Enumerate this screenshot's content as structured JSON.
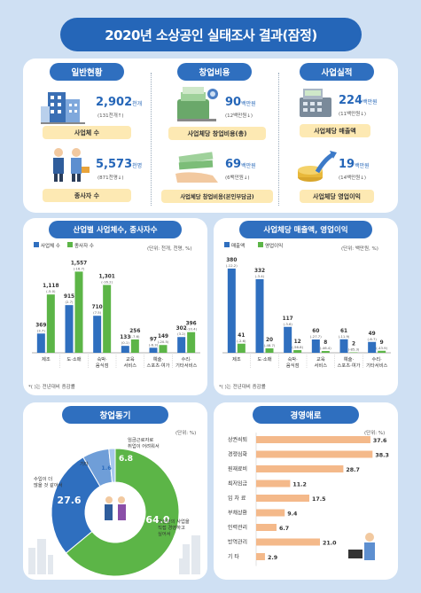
{
  "title": "2020년 소상공인 실태조사 결과(잠정)",
  "general": {
    "header": "일반현황",
    "biz_count": {
      "value": "2,902",
      "unit": "천개",
      "sub": "(131천개↑)",
      "label": "사업체 수"
    },
    "workers": {
      "value": "5,573",
      "unit": "천명",
      "sub": "(871천명↓)",
      "label": "종사자 수"
    }
  },
  "startup_cost": {
    "header": "창업비용",
    "total": {
      "value": "90",
      "unit": "백만원",
      "sub": "(12백만원↓)",
      "label": "사업체당 창업비용(총)"
    },
    "own": {
      "value": "69",
      "unit": "백만원",
      "sub": "(6백만원↓)",
      "label": "사업체당 창업비용(본인부담금)"
    }
  },
  "performance": {
    "header": "사업실적",
    "sales": {
      "value": "224",
      "unit": "백만원",
      "sub": "(11백만원↓)",
      "label": "사업체당 매출액"
    },
    "profit": {
      "value": "19",
      "unit": "백만원",
      "sub": "(14백만원↓)",
      "label": "사업체당 영업이익"
    }
  },
  "colors": {
    "blue": "#2f6fbf",
    "green": "#5cb547",
    "orange": "#f4b98a",
    "yellow": "#fde9b3"
  },
  "chart_data": [
    {
      "type": "bar",
      "title": "산업별 사업체수, 종사자수",
      "unit_note": "(단위: 천개, 천명, %)",
      "footnote": "*( )는 전년대비 증감률",
      "categories": [
        "제조",
        "도·소매",
        "숙박·음식점",
        "교육서비스",
        "예술·스포츠·여가",
        "수리·기타서비스"
      ],
      "category_lines": [
        [
          "제조"
        ],
        [
          "도·소매"
        ],
        [
          "숙박·",
          "음식점"
        ],
        [
          "교육",
          "서비스"
        ],
        [
          "예술·",
          "스포츠·여가"
        ],
        [
          "수리·",
          "기타서비스"
        ]
      ],
      "series": [
        {
          "name": "사업체 수",
          "values": [
            369,
            915,
            710,
            133,
            97,
            302
          ],
          "changes": [
            "(3.7)",
            "(2.7)",
            "(7.5)",
            "(0.1)",
            "(-6.3)",
            "(3.2)"
          ]
        },
        {
          "name": "종사자 수",
          "values": [
            1118,
            1557,
            1301,
            256,
            149,
            396
          ],
          "changes": [
            "(-5.0)",
            "(-16.7)",
            "(-16.2)",
            "(-7.6)",
            "(-20.5)",
            "(-10.4)"
          ]
        }
      ],
      "ylim": [
        0,
        1700
      ]
    },
    {
      "type": "bar",
      "title": "사업체당 매출액, 영업이익",
      "unit_note": "(단위: 백만원, %)",
      "footnote": "*( )는 전년대비 증감률",
      "categories": [
        "제조",
        "도·소매",
        "숙박·음식점",
        "교육서비스",
        "예술·스포츠·여가",
        "수리·기타서비스"
      ],
      "category_lines": [
        [
          "제조"
        ],
        [
          "도·소매"
        ],
        [
          "숙박·",
          "음식점"
        ],
        [
          "교육",
          "서비스"
        ],
        [
          "예술·",
          "스포츠·여가"
        ],
        [
          "수리·",
          "기타서비스"
        ]
      ],
      "series": [
        {
          "name": "매출액",
          "values": [
            380,
            332,
            117,
            60,
            61,
            49
          ],
          "changes": [
            "(-12.2)",
            "(-3.4)",
            "(-3.6)",
            "(-27.7)",
            "(-11.9)",
            "(-6.7)"
          ]
        },
        {
          "name": "영업이익",
          "values": [
            41,
            20,
            12,
            8,
            2,
            9
          ],
          "changes": [
            "(-2.6)",
            "(-48.7)",
            "(-56.8)",
            "(-46.4)",
            "(-85.3)",
            "(-43.9)"
          ]
        }
      ],
      "ylim": [
        0,
        400
      ]
    },
    {
      "type": "pie",
      "title": "창업동기",
      "unit_note": "(단위: %)",
      "slices": [
        {
          "label": "자신만의 사업을 직접 경영하고 싶어서",
          "value": 64.0,
          "color": "#5cb547"
        },
        {
          "label": "수입이 더 많을 것 같아서",
          "value": 27.6,
          "color": "#2f6fbf"
        },
        {
          "label": "임금근로자로 취업이 어려워서",
          "value": 6.8,
          "color": "#6f9ed8"
        },
        {
          "label": "기타",
          "value": 1.6,
          "color": "#a8c8ee"
        }
      ]
    },
    {
      "type": "bar",
      "orientation": "horizontal",
      "title": "경영애로",
      "unit_note": "(단위: %)",
      "categories": [
        "상권쇠퇴",
        "경쟁심화",
        "원재료비",
        "최저임금",
        "임 차 료",
        "부채상환",
        "인력관리",
        "방역관리",
        "기 타"
      ],
      "values": [
        37.6,
        38.3,
        28.7,
        11.2,
        17.5,
        9.4,
        6.7,
        21.0,
        2.9
      ],
      "xlim": [
        0,
        42
      ]
    }
  ]
}
